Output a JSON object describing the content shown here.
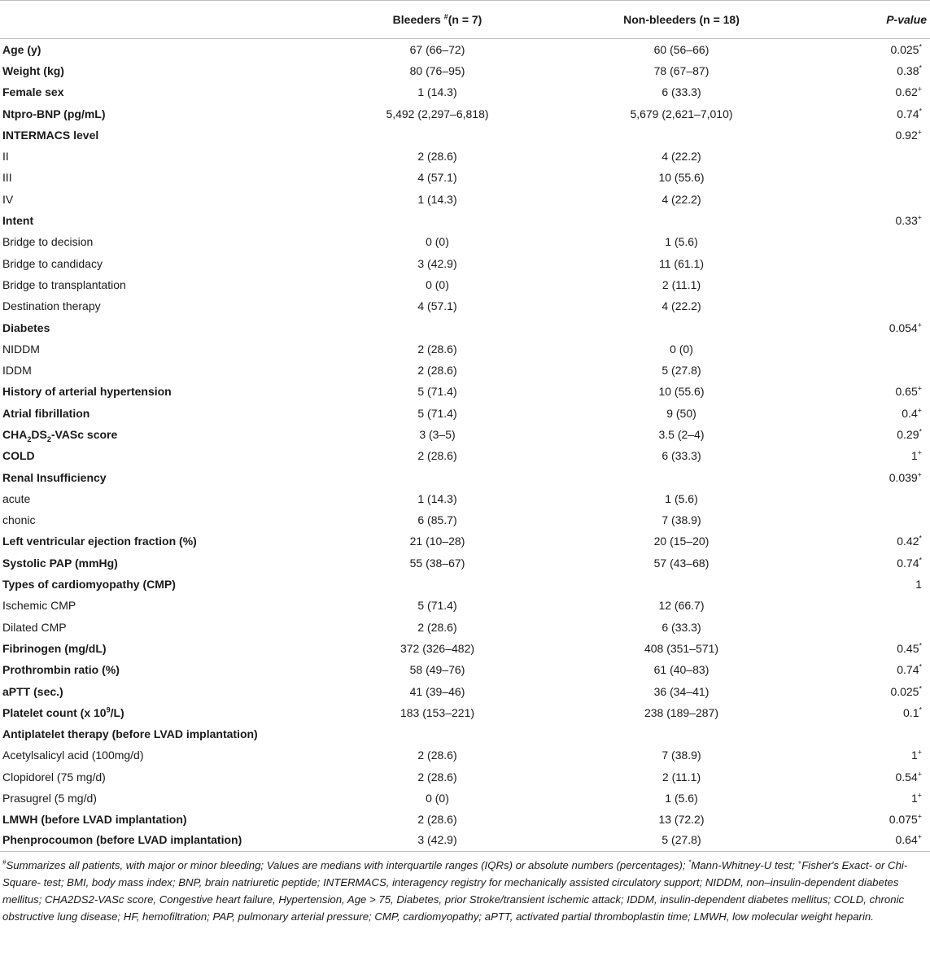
{
  "header": {
    "col1": "",
    "col2_prefix": "Bleeders ",
    "col2_sup": "#",
    "col2_suffix": "(n = 7)",
    "col3": "Non-bleeders (n = 18)",
    "col4": "P-value"
  },
  "rows": [
    {
      "label": "Age (y)",
      "bold": true,
      "bleeders": "67 (66–72)",
      "non_bleeders": "60 (56–66)",
      "p": "0.025",
      "mark": "*"
    },
    {
      "label": "Weight (kg)",
      "bold": true,
      "bleeders": "80 (76–95)",
      "non_bleeders": "78 (67–87)",
      "p": "0.38",
      "mark": "*"
    },
    {
      "label": "Female sex",
      "bold": true,
      "bleeders": "1 (14.3)",
      "non_bleeders": "6 (33.3)",
      "p": "0.62",
      "mark": "+"
    },
    {
      "label": "Ntpro-BNP (pg/mL)",
      "bold": true,
      "bleeders": "5,492 (2,297–6,818)",
      "non_bleeders": "5,679 (2,621–7,010)",
      "p": "0.74",
      "mark": "*"
    },
    {
      "label": "INTERMACS level",
      "bold": true,
      "bleeders": "",
      "non_bleeders": "",
      "p": "0.92",
      "mark": "+"
    },
    {
      "label": "II",
      "bold": false,
      "bleeders": "2 (28.6)",
      "non_bleeders": "4 (22.2)",
      "p": "",
      "mark": ""
    },
    {
      "label": "III",
      "bold": false,
      "bleeders": "4 (57.1)",
      "non_bleeders": "10 (55.6)",
      "p": "",
      "mark": ""
    },
    {
      "label": "IV",
      "bold": false,
      "bleeders": "1 (14.3)",
      "non_bleeders": "4 (22.2)",
      "p": "",
      "mark": ""
    },
    {
      "label": "Intent",
      "bold": true,
      "bleeders": "",
      "non_bleeders": "",
      "p": "0.33",
      "mark": "+"
    },
    {
      "label": "Bridge to decision",
      "bold": false,
      "bleeders": "0 (0)",
      "non_bleeders": "1 (5.6)",
      "p": "",
      "mark": ""
    },
    {
      "label": "Bridge to candidacy",
      "bold": false,
      "bleeders": "3 (42.9)",
      "non_bleeders": "11 (61.1)",
      "p": "",
      "mark": ""
    },
    {
      "label": "Bridge to transplantation",
      "bold": false,
      "bleeders": "0 (0)",
      "non_bleeders": "2 (11.1)",
      "p": "",
      "mark": ""
    },
    {
      "label": "Destination therapy",
      "bold": false,
      "bleeders": "4 (57.1)",
      "non_bleeders": "4 (22.2)",
      "p": "",
      "mark": ""
    },
    {
      "label": "Diabetes",
      "bold": true,
      "bleeders": "",
      "non_bleeders": "",
      "p": "0.054",
      "mark": "+"
    },
    {
      "label": "NIDDM",
      "bold": false,
      "bleeders": "2 (28.6)",
      "non_bleeders": "0 (0)",
      "p": "",
      "mark": ""
    },
    {
      "label": "IDDM",
      "bold": false,
      "bleeders": "2 (28.6)",
      "non_bleeders": "5 (27.8)",
      "p": "",
      "mark": ""
    },
    {
      "label": "History of arterial hypertension",
      "bold": true,
      "bleeders": "5 (71.4)",
      "non_bleeders": "10 (55.6)",
      "p": "0.65",
      "mark": "+"
    },
    {
      "label": "Atrial fibrillation",
      "bold": true,
      "bleeders": "5 (71.4)",
      "non_bleeders": "9 (50)",
      "p": "0.4",
      "mark": "+"
    },
    {
      "label": "CHA2DS2-VASc score",
      "bold": true,
      "rich": "cha",
      "bleeders": "3 (3–5)",
      "non_bleeders": "3.5 (2–4)",
      "p": "0.29",
      "mark": "*"
    },
    {
      "label": "COLD",
      "bold": true,
      "bleeders": "2 (28.6)",
      "non_bleeders": "6 (33.3)",
      "p": "1",
      "mark": "+"
    },
    {
      "label": "Renal Insufficiency",
      "bold": true,
      "bleeders": "",
      "non_bleeders": "",
      "p": "0.039",
      "mark": "+"
    },
    {
      "label": "acute",
      "bold": false,
      "bleeders": "1 (14.3)",
      "non_bleeders": "1 (5.6)",
      "p": "",
      "mark": ""
    },
    {
      "label": "chonic",
      "bold": false,
      "bleeders": "6 (85.7)",
      "non_bleeders": "7 (38.9)",
      "p": "",
      "mark": ""
    },
    {
      "label": "Left ventricular ejection fraction (%)",
      "bold": true,
      "bleeders": "21 (10–28)",
      "non_bleeders": "20 (15–20)",
      "p": "0.42",
      "mark": "*"
    },
    {
      "label": "Systolic PAP (mmHg)",
      "bold": true,
      "bleeders": "55 (38–67)",
      "non_bleeders": "57 (43–68)",
      "p": "0.74",
      "mark": "*"
    },
    {
      "label": "Types of cardiomyopathy (CMP)",
      "bold": true,
      "bleeders": "",
      "non_bleeders": "",
      "p": "1",
      "mark": ""
    },
    {
      "label": "Ischemic CMP",
      "bold": false,
      "bleeders": "5 (71.4)",
      "non_bleeders": "12 (66.7)",
      "p": "",
      "mark": ""
    },
    {
      "label": "Dilated CMP",
      "bold": false,
      "bleeders": "2 (28.6)",
      "non_bleeders": "6 (33.3)",
      "p": "",
      "mark": ""
    },
    {
      "label": "Fibrinogen (mg/dL)",
      "bold": true,
      "bleeders": "372 (326–482)",
      "non_bleeders": "408 (351–571)",
      "p": "0.45",
      "mark": "*"
    },
    {
      "label": "Prothrombin ratio (%)",
      "bold": true,
      "bleeders": "58 (49–76)",
      "non_bleeders": "61 (40–83)",
      "p": "0.74",
      "mark": "*"
    },
    {
      "label": "aPTT (sec.)",
      "bold": true,
      "bleeders": "41 (39–46)",
      "non_bleeders": "36 (34–41)",
      "p": "0.025",
      "mark": "*"
    },
    {
      "label": "Platelet count (x 10^9/L)",
      "bold": true,
      "rich": "plt",
      "bleeders": "183 (153–221)",
      "non_bleeders": "238 (189–287)",
      "p": "0.1",
      "mark": "*"
    },
    {
      "label": "Antiplatelet therapy (before LVAD implantation)",
      "bold": true,
      "bleeders": "",
      "non_bleeders": "",
      "p": "",
      "mark": ""
    },
    {
      "label": "Acetylsalicyl acid (100mg/d)",
      "bold": false,
      "bleeders": "2 (28.6)",
      "non_bleeders": "7 (38.9)",
      "p": "1",
      "mark": "+"
    },
    {
      "label": "Clopidorel (75 mg/d)",
      "bold": false,
      "bleeders": "2 (28.6)",
      "non_bleeders": "2 (11.1)",
      "p": "0.54",
      "mark": "+"
    },
    {
      "label": "Prasugrel (5 mg/d)",
      "bold": false,
      "bleeders": "0 (0)",
      "non_bleeders": "1 (5.6)",
      "p": "1",
      "mark": "+"
    },
    {
      "label": "LMWH (before LVAD implantation)",
      "bold": true,
      "bleeders": "2 (28.6)",
      "non_bleeders": "13 (72.2)",
      "p": "0.075",
      "mark": "+"
    },
    {
      "label": "Phenprocoumon (before LVAD implantation)",
      "bold": true,
      "bleeders": "3 (42.9)",
      "non_bleeders": "5 (27.8)",
      "p": "0.64",
      "mark": "+"
    }
  ],
  "footnote": {
    "hash_mark": "#",
    "part1": "Summarizes all patients, with major or minor bleeding; Values are medians with interquartile ranges (IQRs) or absolute numbers (percentages); ",
    "star_mark": "*",
    "part2": "Mann-Whitney-U test; ",
    "plus_mark": "+",
    "part3": "Fisher's Exact- or Chi-Square- test; BMI, body mass index; BNP, brain natriuretic peptide; INTERMACS, interagency registry for mechanically assisted circulatory support; NIDDM, non–insulin-dependent diabetes mellitus; CHA2DS2-VASc score, Congestive heart failure, Hypertension, Age > 75, Diabetes, prior Stroke/transient ischemic attack; IDDM, insulin-dependent diabetes mellitus; COLD, chronic obstructive lung disease; HF, hemofiltration; PAP, pulmonary arterial pressure; CMP, cardiomyopathy; aPTT, activated partial thromboplastin time; LMWH, low molecular weight heparin."
  }
}
